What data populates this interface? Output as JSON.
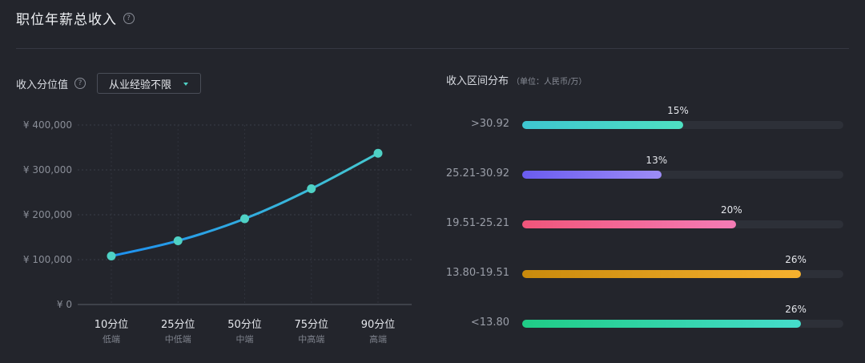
{
  "header": {
    "title": "职位年薪总收入",
    "help_glyph": "?"
  },
  "left_panel": {
    "label": "收入分位值",
    "help_glyph": "?",
    "dropdown_value": "从业经验不限"
  },
  "right_panel": {
    "label": "收入区间分布",
    "unit": "（单位：人民币/万）"
  },
  "chart_data": [
    {
      "type": "line",
      "categories": [
        "10分位",
        "25分位",
        "50分位",
        "75分位",
        "90分位"
      ],
      "category_sublabels": [
        "低端",
        "中低端",
        "中端",
        "中高端",
        "高端"
      ],
      "values": [
        108000,
        142000,
        191000,
        258000,
        337000
      ],
      "ylim": [
        0,
        400000
      ],
      "yticks": [
        0,
        100000,
        200000,
        300000,
        400000
      ],
      "ytick_labels": [
        "¥ 0",
        "¥ 100,000",
        "¥ 200,000",
        "¥ 300,000",
        "¥ 400,000"
      ],
      "grid": true,
      "colors": {
        "line_start": "#1d8ff0",
        "line_end": "#45c8d0",
        "point": "#4fd1c5"
      }
    },
    {
      "type": "bar",
      "orientation": "horizontal",
      "categories": [
        ">30.92",
        "25.21-30.92",
        "19.51-25.21",
        "13.80-19.51",
        "<13.80"
      ],
      "values": [
        15,
        13,
        20,
        26,
        26
      ],
      "value_labels": [
        "15%",
        "13%",
        "20%",
        "26%",
        "26%"
      ],
      "xlim": [
        0,
        30
      ],
      "colors": [
        [
          "#3ec6d0",
          "#4ee0c2"
        ],
        [
          "#6a5cf0",
          "#9d8cf6"
        ],
        [
          "#f0557a",
          "#f47cb6"
        ],
        [
          "#c98a0c",
          "#f6b12e"
        ],
        [
          "#1fcc86",
          "#45dccb"
        ]
      ]
    }
  ]
}
